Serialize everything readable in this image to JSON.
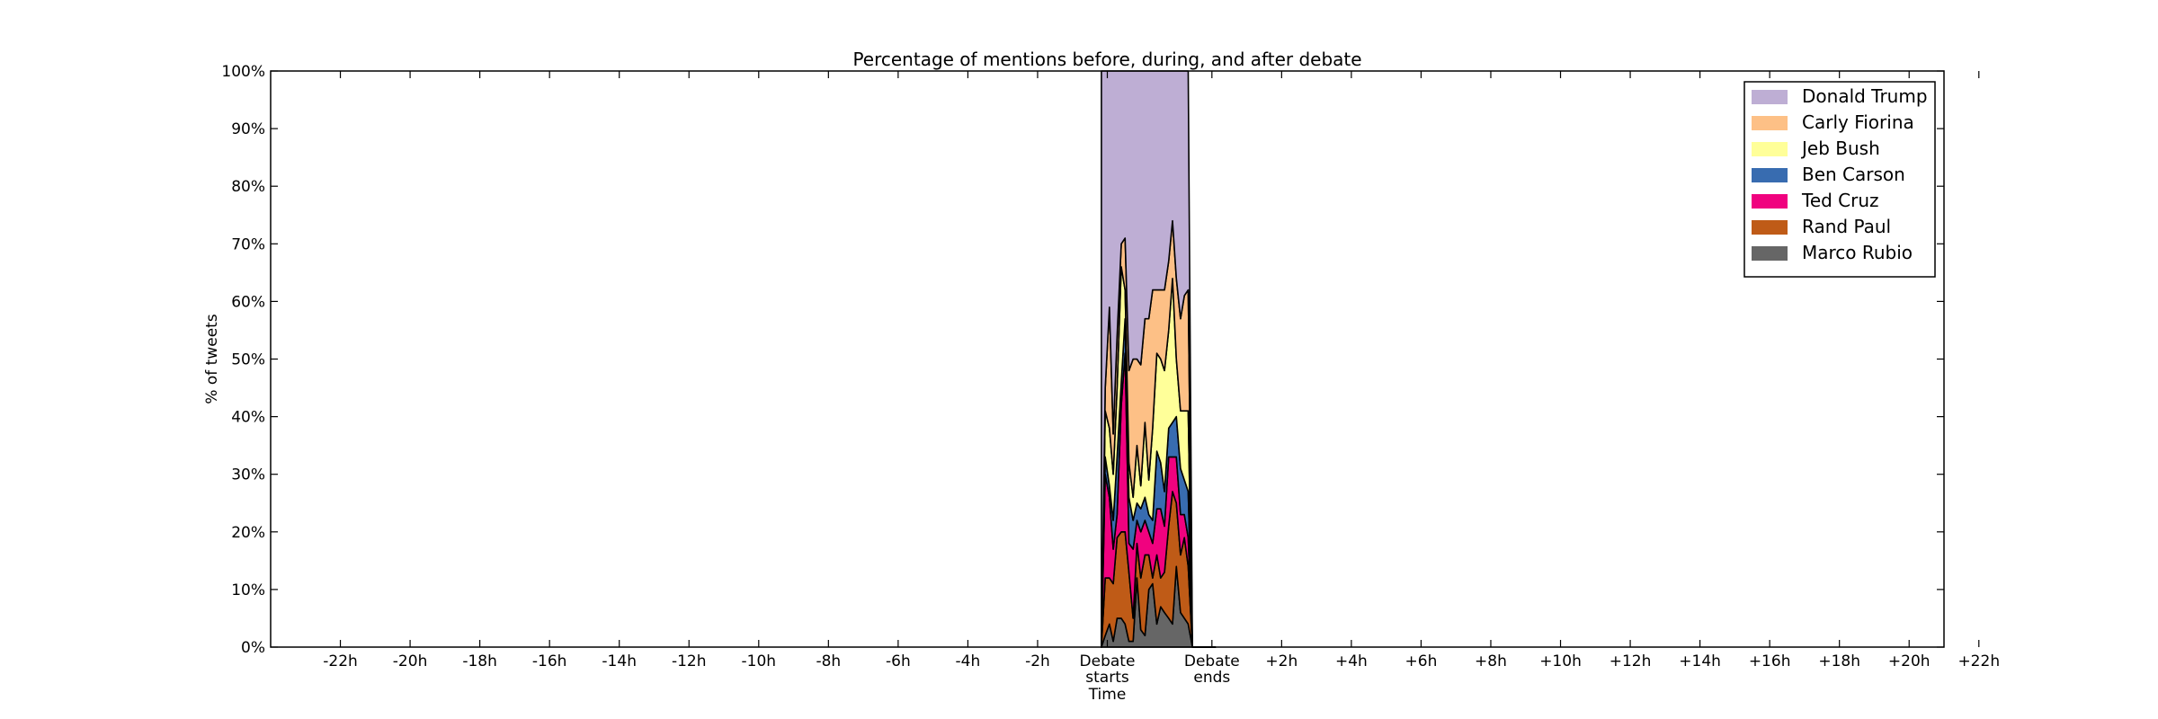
{
  "chart_data": {
    "type": "area",
    "stacked": true,
    "title": "Percentage of mentions before, during, and after debate",
    "xlabel": "Time",
    "ylabel": "% of tweets",
    "xlim": [
      -24,
      24
    ],
    "ylim": [
      0,
      100
    ],
    "yticks": [
      0,
      10,
      20,
      30,
      40,
      50,
      60,
      70,
      80,
      90,
      100
    ],
    "ytick_labels": [
      "0%",
      "10%",
      "20%",
      "30%",
      "40%",
      "50%",
      "60%",
      "70%",
      "80%",
      "90%",
      "100%"
    ],
    "xticks": [
      {
        "x": -22,
        "lines": [
          "-22h"
        ]
      },
      {
        "x": -20,
        "lines": [
          "-20h"
        ]
      },
      {
        "x": -18,
        "lines": [
          "-18h"
        ]
      },
      {
        "x": -16,
        "lines": [
          "-16h"
        ]
      },
      {
        "x": -14,
        "lines": [
          "-14h"
        ]
      },
      {
        "x": -12,
        "lines": [
          "-12h"
        ]
      },
      {
        "x": -10,
        "lines": [
          "-10h"
        ]
      },
      {
        "x": -8,
        "lines": [
          "-8h"
        ]
      },
      {
        "x": -6,
        "lines": [
          "-6h"
        ]
      },
      {
        "x": -4,
        "lines": [
          "-4h"
        ]
      },
      {
        "x": -2,
        "lines": [
          "-2h"
        ]
      },
      {
        "x": 0,
        "lines": [
          "Debate",
          "starts"
        ]
      },
      {
        "x": 3,
        "lines": [
          "Debate",
          "ends"
        ]
      },
      {
        "x": 5,
        "lines": [
          "+2h"
        ]
      },
      {
        "x": 7,
        "lines": [
          "+4h"
        ]
      },
      {
        "x": 9,
        "lines": [
          "+6h"
        ]
      },
      {
        "x": 11,
        "lines": [
          "+8h"
        ]
      },
      {
        "x": 13,
        "lines": [
          "+10h"
        ]
      },
      {
        "x": 15,
        "lines": [
          "+12h"
        ]
      },
      {
        "x": 17,
        "lines": [
          "+14h"
        ]
      },
      {
        "x": 19,
        "lines": [
          "+16h"
        ]
      },
      {
        "x": 21,
        "lines": [
          "+18h"
        ]
      },
      {
        "x": 23,
        "lines": [
          "+20h"
        ]
      },
      {
        "x": 25,
        "lines": [
          "+22h"
        ]
      }
    ],
    "legend_position": "top-right",
    "x": [
      -0.17,
      -0.06,
      0.06,
      0.17,
      0.28,
      0.4,
      0.51,
      0.62,
      0.74,
      0.85,
      0.96,
      1.08,
      1.19,
      1.3,
      1.42,
      1.53,
      1.64,
      1.76,
      1.87,
      1.98,
      2.1,
      2.21,
      2.32,
      2.44,
      2.55,
      2.66,
      2.78,
      2.89,
      3.0,
      3.1
    ],
    "series": [
      {
        "name": "Marco Rubio",
        "color": "#666666",
        "values": [
          0,
          2,
          4,
          1,
          5,
          5,
          4,
          1,
          1,
          12,
          3,
          2,
          10,
          11,
          4,
          7,
          6,
          5,
          4,
          14,
          6,
          5,
          4,
          0,
          0,
          0,
          0,
          0,
          0,
          0
        ]
      },
      {
        "name": "Rand Paul",
        "color": "#bf5b17",
        "values": [
          0,
          10,
          8,
          10,
          14,
          15,
          16,
          12,
          4,
          6,
          9,
          14,
          6,
          1,
          12,
          5,
          7,
          16,
          23,
          11,
          10,
          14,
          10,
          0,
          0,
          0,
          0,
          0,
          0,
          0
        ]
      },
      {
        "name": "Ted Cruz",
        "color": "#f0027f",
        "values": [
          0,
          18,
          14,
          6,
          4,
          22,
          31,
          5,
          12,
          4,
          8,
          6,
          4,
          6,
          8,
          12,
          8,
          12,
          6,
          8,
          7,
          4,
          5,
          0,
          0,
          0,
          0,
          0,
          0,
          0
        ]
      },
      {
        "name": "Ben Carson",
        "color": "#386cb0",
        "values": [
          0,
          3,
          2,
          5,
          10,
          4,
          6,
          8,
          5,
          3,
          4,
          4,
          3,
          4,
          10,
          8,
          6,
          5,
          6,
          7,
          8,
          6,
          8,
          0,
          0,
          0,
          0,
          0,
          0,
          0
        ]
      },
      {
        "name": "Jeb Bush",
        "color": "#ffff99",
        "values": [
          0,
          8,
          10,
          8,
          12,
          20,
          5,
          6,
          4,
          10,
          4,
          13,
          6,
          16,
          17,
          18,
          21,
          17,
          25,
          10,
          10,
          12,
          14,
          0,
          0,
          0,
          0,
          0,
          0,
          0
        ]
      },
      {
        "name": "Carly Fiorina",
        "color": "#fdc086",
        "values": [
          0,
          4,
          21,
          7,
          9,
          4,
          9,
          16,
          24,
          15,
          21,
          18,
          28,
          24,
          11,
          12,
          14,
          12,
          10,
          14,
          16,
          20,
          21,
          0,
          0,
          0,
          0,
          0,
          0,
          0
        ]
      },
      {
        "name": "Donald Trump",
        "color": "#beaed4",
        "values": [
          100,
          55,
          41,
          63,
          46,
          30,
          29,
          52,
          50,
          50,
          51,
          43,
          43,
          38,
          38,
          38,
          38,
          33,
          26,
          36,
          43,
          39,
          38,
          0,
          0,
          0,
          0,
          0,
          0,
          0
        ]
      }
    ]
  }
}
